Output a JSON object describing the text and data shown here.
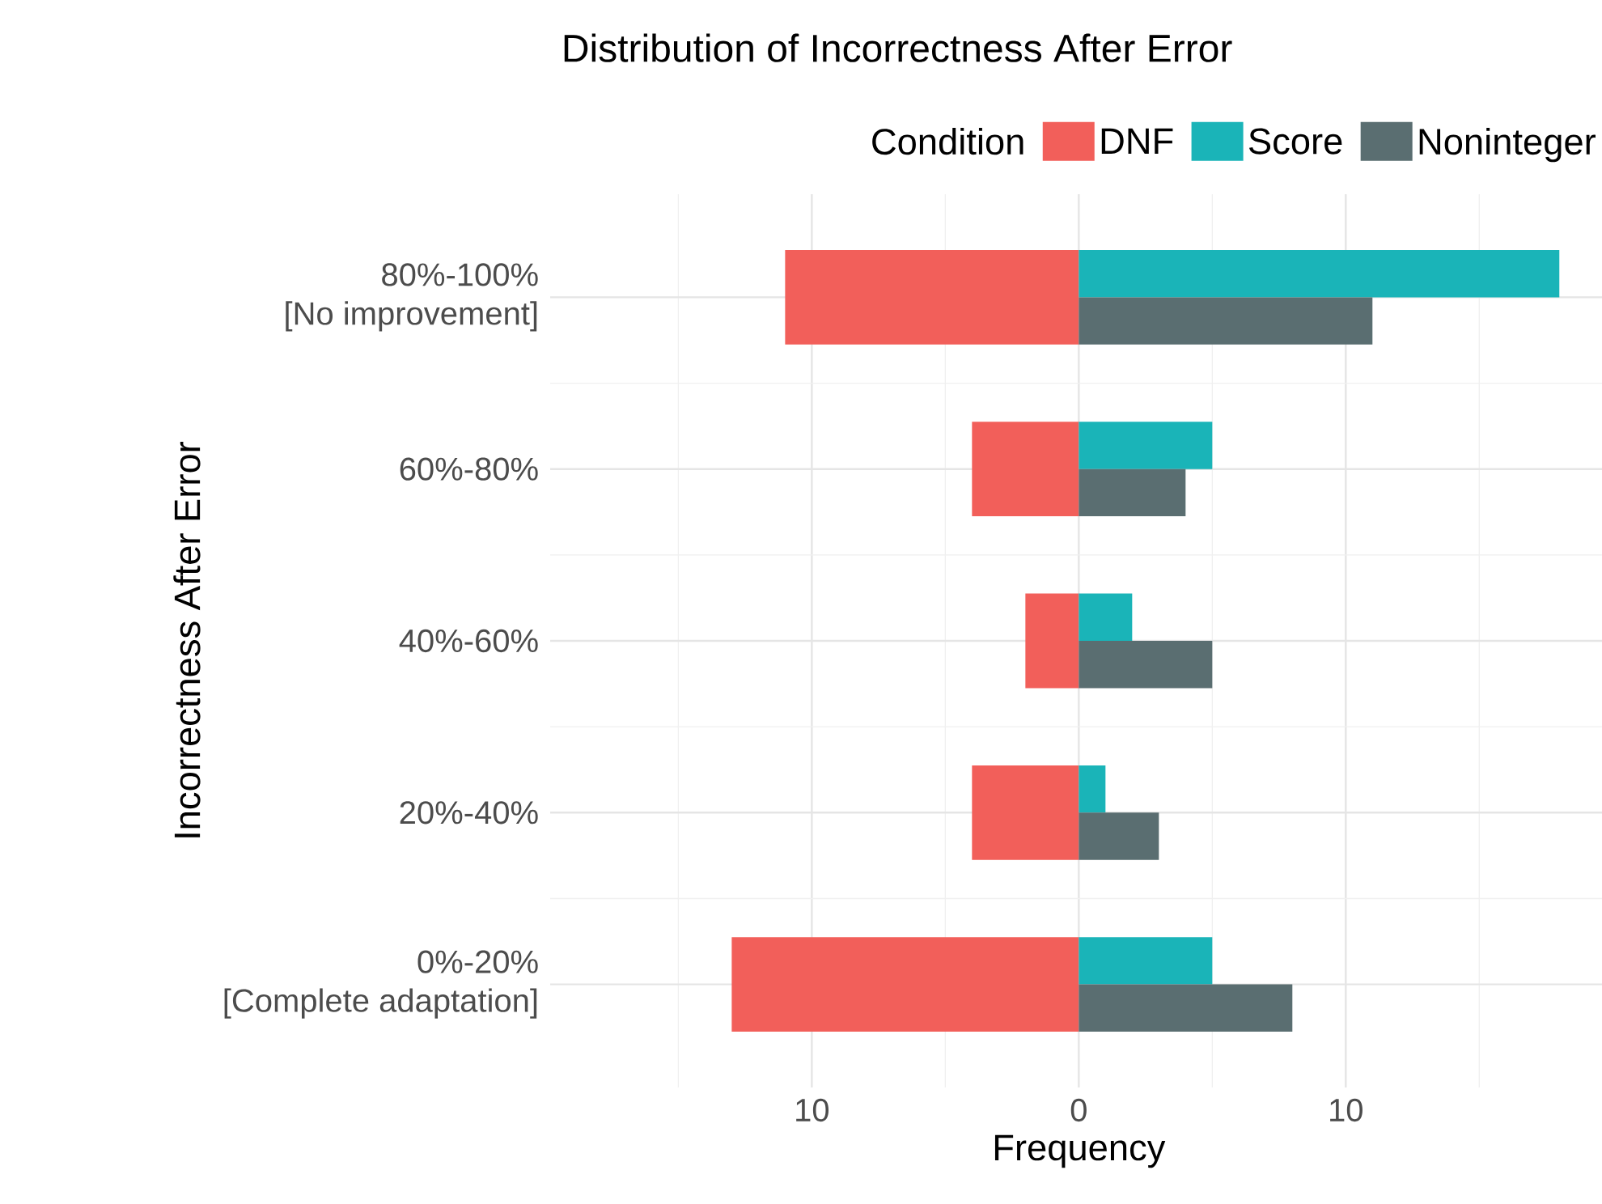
{
  "chart_data": {
    "type": "bar",
    "orientation": "horizontal",
    "title": "Distribution of Incorrectness After Error",
    "xlabel": "Frequency",
    "ylabel": "Incorrectness After Error",
    "legend_title": "Condition",
    "categories": [
      "80%-100%\n[No improvement]",
      "60%-80%",
      "40%-60%",
      "20%-40%",
      "0%-20%\n[Complete adaptation]"
    ],
    "series": [
      {
        "name": "DNF",
        "color": "#f25f5a",
        "values": [
          -11,
          -4,
          -2,
          -4,
          -13
        ]
      },
      {
        "name": "Score",
        "color": "#1ab4b8",
        "values": [
          18,
          5,
          2,
          1,
          5
        ]
      },
      {
        "name": "Noninteger",
        "color": "#5a6e71",
        "values": [
          11,
          4,
          5,
          3,
          8
        ]
      }
    ],
    "xlim": [
      -19.8,
      19.8
    ],
    "xticks": [
      {
        "value": -10,
        "label": "10"
      },
      0,
      10
    ],
    "grid": true,
    "legend": "top right"
  }
}
